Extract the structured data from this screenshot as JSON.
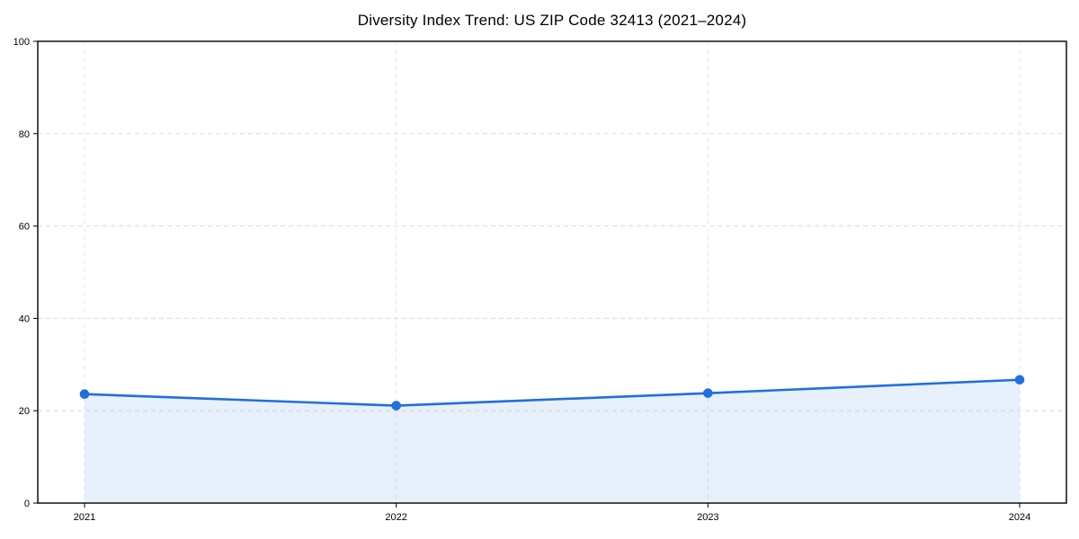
{
  "page": {
    "background_color": "#ffffff"
  },
  "chart_data": {
    "type": "area",
    "title": "Diversity Index Trend: US ZIP Code 32413 (2021–2024)",
    "categories": [
      "2021",
      "2022",
      "2023",
      "2024"
    ],
    "series": [
      {
        "name": "Diversity Index",
        "values": [
          23.6,
          21.1,
          23.8,
          26.7
        ]
      }
    ],
    "xlabel": "",
    "ylabel": "",
    "ylim": [
      0,
      100
    ],
    "yticks": [
      0,
      20,
      40,
      60,
      80,
      100
    ],
    "grid": true,
    "grid_style": "dashed",
    "legend_position": "none",
    "colors": {
      "line": "#1f6fe0",
      "marker": "#1f6fe0",
      "area_fill": "rgba(31,111,224,0.10)",
      "grid_horizontal": "#dcdcdc",
      "grid_vertical": "#e7e7e7",
      "axis": "#000000",
      "tick_label": "#000000",
      "title": "#000000"
    }
  }
}
